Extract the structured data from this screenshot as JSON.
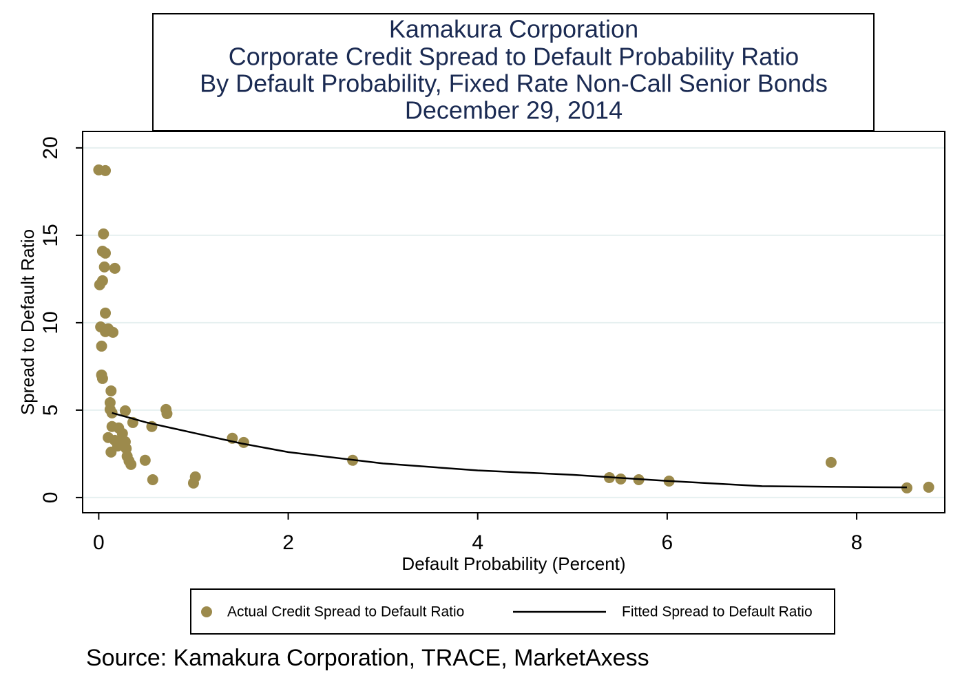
{
  "chart_data": {
    "type": "scatter",
    "title": [
      "Kamakura Corporation",
      "Corporate Credit Spread to Default Probability Ratio",
      "By Default Probability, Fixed Rate Non-Call Senior Bonds",
      "December 29, 2014"
    ],
    "x_label": "Default Probability (Percent)",
    "y_label": "Spread to Default Ratio",
    "source": "Source: Kamakura Corporation, TRACE, MarketAxess",
    "xlim": [
      -0.17,
      8.93
    ],
    "ylim": [
      -0.87,
      20.94
    ],
    "xticks": [
      0,
      2,
      4,
      6,
      8
    ],
    "yticks": [
      0,
      5,
      10,
      15,
      20
    ],
    "grid": true,
    "series": [
      {
        "name": "Actual Credit Spread to Default Ratio",
        "type": "scatter",
        "color": "#9c8a4c",
        "x": [
          0,
          0.07,
          0.05,
          0.04,
          0.07,
          0.06,
          0.17,
          0.04,
          0.01,
          0.07,
          0.02,
          0.1,
          0.07,
          0.15,
          0.03,
          0.03,
          0.04,
          0.13,
          0.12,
          0.12,
          0.14,
          0.28,
          0.71,
          0.72,
          0.36,
          0.56,
          0.14,
          0.21,
          0.25,
          0.1,
          0.17,
          0.24,
          0.28,
          0.2,
          0.29,
          0.13,
          0.3,
          0.32,
          0.34,
          0.49,
          0.57,
          1.0,
          1.02,
          1.41,
          1.53,
          2.68,
          5.39,
          5.51,
          5.7,
          6.02,
          7.73,
          8.53,
          8.76
        ],
        "values": [
          18.74,
          18.7,
          15.08,
          14.09,
          13.98,
          13.19,
          13.11,
          12.4,
          12.17,
          10.55,
          9.76,
          9.65,
          9.49,
          9.45,
          8.66,
          7.01,
          6.81,
          6.1,
          5.43,
          5.04,
          4.84,
          4.96,
          5.04,
          4.8,
          4.29,
          4.06,
          4.06,
          3.98,
          3.66,
          3.43,
          3.27,
          3.35,
          3.19,
          2.95,
          2.8,
          2.6,
          2.36,
          2.09,
          1.89,
          2.13,
          1.02,
          0.83,
          1.18,
          3.39,
          3.15,
          2.13,
          1.14,
          1.06,
          1.02,
          0.94,
          2.01,
          0.55,
          0.59
        ]
      },
      {
        "name": "Fitted Spread to Default Ratio",
        "type": "line",
        "color": "#000000",
        "x": [
          0.14,
          0.5,
          1,
          1.5,
          2,
          3,
          4,
          5,
          6,
          7,
          8,
          8.53
        ],
        "values": [
          4.84,
          4.3,
          3.7,
          3.1,
          2.6,
          1.95,
          1.55,
          1.3,
          0.95,
          0.65,
          0.6,
          0.58
        ]
      }
    ]
  }
}
